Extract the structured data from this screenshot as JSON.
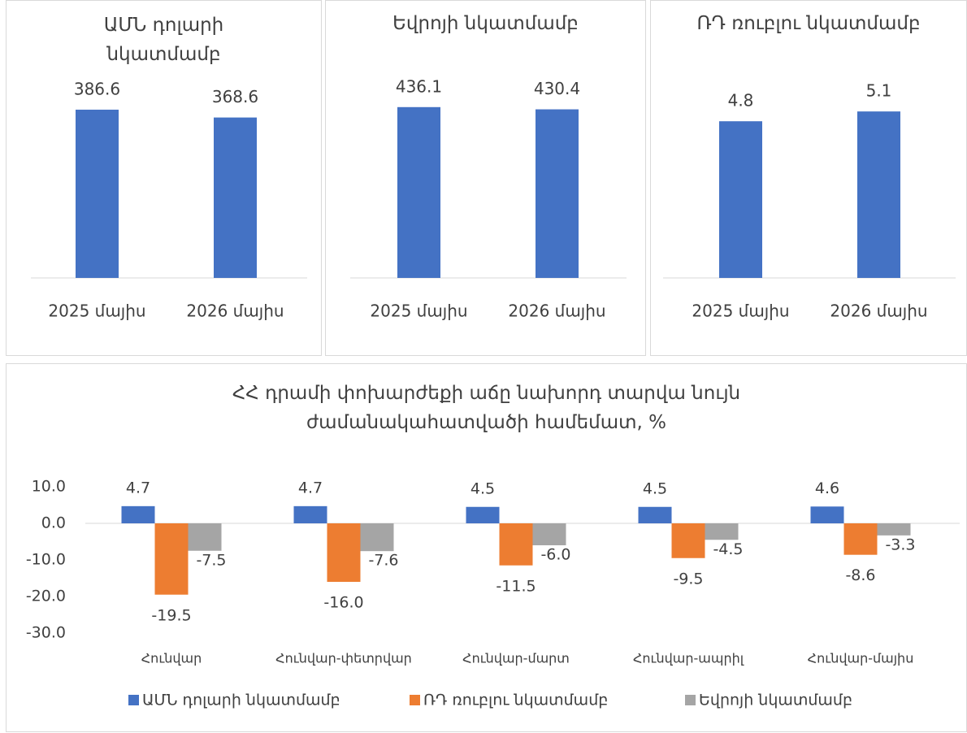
{
  "chart_data": [
    {
      "type": "bar",
      "title": "ԱՄՆ դոլարի նկատմամբ",
      "categories": [
        "2025 մայիս",
        "2026 մայիս"
      ],
      "values": [
        386.6,
        368.6
      ],
      "color": "#4472c4",
      "ylim": [
        0,
        450
      ]
    },
    {
      "type": "bar",
      "title": "Եվրոյի նկատմամբ",
      "categories": [
        "2025 մայիս",
        "2026 մայիս"
      ],
      "values": [
        436.1,
        430.4
      ],
      "color": "#4472c4",
      "ylim": [
        0,
        500
      ]
    },
    {
      "type": "bar",
      "title": "ՌԴ ռուբլու նկատմամբ",
      "categories": [
        "2025 մայիս",
        "2026 մայիս"
      ],
      "values": [
        4.8,
        5.1
      ],
      "color": "#4472c4",
      "ylim": [
        0,
        6
      ]
    },
    {
      "type": "grouped_bar",
      "title": "ՀՀ դրամի փոխարժեքի աճը նախորդ տարվա նույն ժամանակահատվածի համեմատ, %",
      "categories": [
        "Հունվար",
        "Հունվար-փետրվար",
        "Հունվար-մարտ",
        "Հունվար-ապրիլ",
        "Հունվար-մայիս"
      ],
      "series": [
        {
          "name": "ԱՄՆ դոլարի նկատմամբ",
          "color": "#4472c4",
          "values": [
            4.7,
            4.7,
            4.5,
            4.5,
            4.6
          ],
          "value_labels": [
            "4.7",
            "4.7",
            "4.5",
            "4.5",
            "4.6"
          ]
        },
        {
          "name": "ՌԴ ռուբլու նկատմամբ",
          "color": "#ed7d31",
          "values": [
            -19.5,
            -16.0,
            -11.5,
            -9.5,
            -8.6
          ],
          "value_labels": [
            "-19.5",
            "-16.0",
            "-11.5",
            "-9.5",
            "-8.6"
          ]
        },
        {
          "name": "Եվրոյի նկատմամբ",
          "color": "#a5a5a5",
          "values": [
            -7.5,
            -7.6,
            -6.0,
            -4.5,
            -3.3
          ],
          "value_labels": [
            "-7.5",
            "-7.6",
            "-6.0",
            "-4.5",
            "-3.3"
          ]
        }
      ],
      "ylim": [
        -30,
        10
      ],
      "yticks": [
        {
          "value": 10,
          "label": "10.0"
        },
        {
          "value": 0,
          "label": "0.0"
        },
        {
          "value": -10,
          "label": "-10.0"
        },
        {
          "value": -20,
          "label": "-20.0"
        },
        {
          "value": -30,
          "label": "-30.0"
        }
      ],
      "legend": "bottom"
    }
  ]
}
